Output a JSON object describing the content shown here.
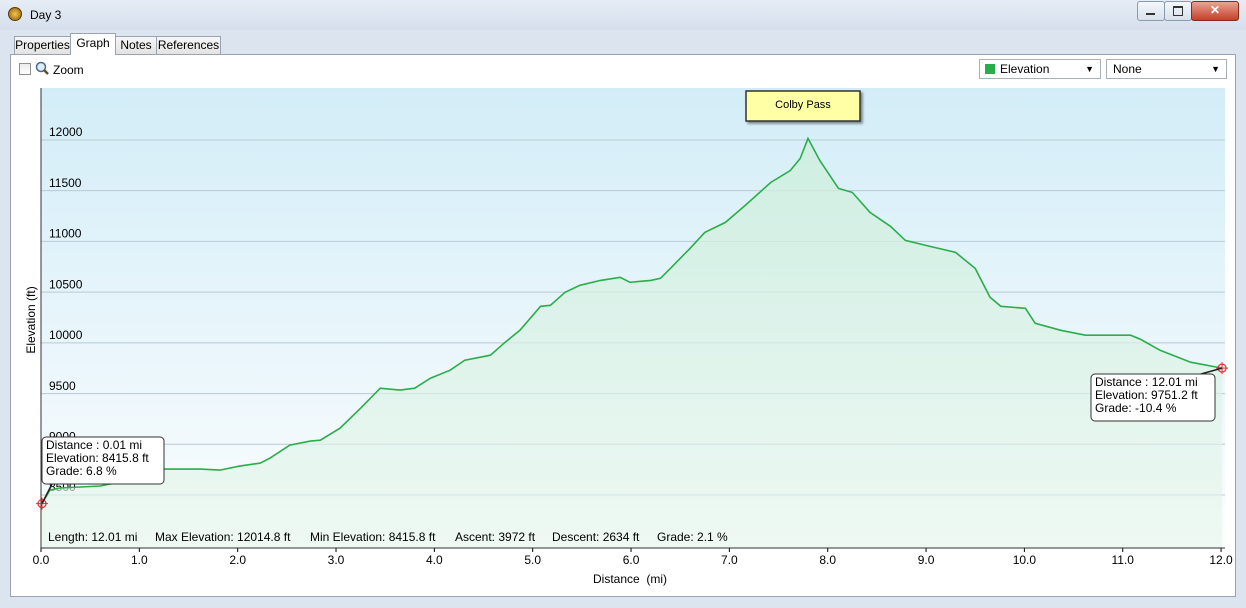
{
  "window": {
    "title": "Day 3"
  },
  "tabs": [
    "Properties",
    "Graph",
    "Notes",
    "References"
  ],
  "toolbar": {
    "zoom": "Zoom",
    "second_select": "None"
  },
  "chart_data": {
    "type": "line",
    "xlabel": "Distance  (mi)",
    "ylabel": "Elevation (ft)",
    "annotation": "Colby Pass",
    "x": [
      0.01,
      0.09,
      0.19,
      0.4,
      0.6,
      0.8,
      0.98,
      1.11,
      1.21,
      1.62,
      1.82,
      2.02,
      2.23,
      2.33,
      2.53,
      2.74,
      2.84,
      3.04,
      3.25,
      3.45,
      3.65,
      3.8,
      3.96,
      4.16,
      4.31,
      4.57,
      4.72,
      4.87,
      5.08,
      5.18,
      5.33,
      5.48,
      5.69,
      5.89,
      5.99,
      6.2,
      6.3,
      6.4,
      6.6,
      6.75,
      6.96,
      7.16,
      7.42,
      7.62,
      7.72,
      7.8,
      7.92,
      8.11,
      8.25,
      8.43,
      8.64,
      8.79,
      9.04,
      9.3,
      9.5,
      9.65,
      9.76,
      10.01,
      10.11,
      10.37,
      10.62,
      11.08,
      11.18,
      11.38,
      11.69,
      12.01
    ],
    "series": [
      {
        "name": "Elevation",
        "color": "#2aad4a",
        "values": [
          8415.8,
          8549,
          8569,
          8579,
          8589,
          8628,
          8726,
          8795,
          8756,
          8756,
          8746,
          8785,
          8815,
          8864,
          8992,
          9032,
          9041,
          9159,
          9356,
          9553,
          9534,
          9553,
          9652,
          9730,
          9829,
          9878,
          10006,
          10124,
          10360,
          10370,
          10498,
          10567,
          10616,
          10646,
          10597,
          10616,
          10636,
          10734,
          10931,
          11089,
          11187,
          11354,
          11581,
          11699,
          11817,
          12014.8,
          11797,
          11522,
          11483,
          11286,
          11148,
          11010,
          10951,
          10892,
          10734,
          10449,
          10360,
          10341,
          10193,
          10124,
          10075,
          10075,
          10036,
          9927,
          9809,
          9751.2
        ]
      }
    ],
    "xlim": [
      0,
      12.04
    ],
    "ylim": [
      7978,
      12512
    ],
    "xticks": [
      {
        "value": 0,
        "label": "0.0"
      },
      {
        "value": 1,
        "label": "1.0"
      },
      {
        "value": 2,
        "label": "2.0"
      },
      {
        "value": 3,
        "label": "3.0"
      },
      {
        "value": 4,
        "label": "4.0"
      },
      {
        "value": 5,
        "label": "5.0"
      },
      {
        "value": 6,
        "label": "6.0"
      },
      {
        "value": 7,
        "label": "7.0"
      },
      {
        "value": 8,
        "label": "8.0"
      },
      {
        "value": 9,
        "label": "9.0"
      },
      {
        "value": 10,
        "label": "10.0"
      },
      {
        "value": 11,
        "label": "11.0"
      },
      {
        "value": 12,
        "label": "12.0"
      }
    ],
    "yticks": [
      8500,
      9000,
      9500,
      10000,
      10500,
      11000,
      11500,
      12000
    ],
    "grid": true
  },
  "callouts": [
    [
      "Distance : 0.01 mi",
      "Elevation: 8415.8 ft",
      "Grade: 6.8 %"
    ],
    [
      "Distance : 12.01 mi",
      "Elevation: 9751.2 ft",
      "Grade: -10.4 %"
    ]
  ],
  "stats": [
    "Length: 12.01 mi",
    "Max Elevation: 12014.8 ft",
    "Min Elevation: 8415.8 ft",
    "Ascent: 3972 ft",
    "Descent: 2634 ft",
    "Grade: 2.1 %"
  ]
}
